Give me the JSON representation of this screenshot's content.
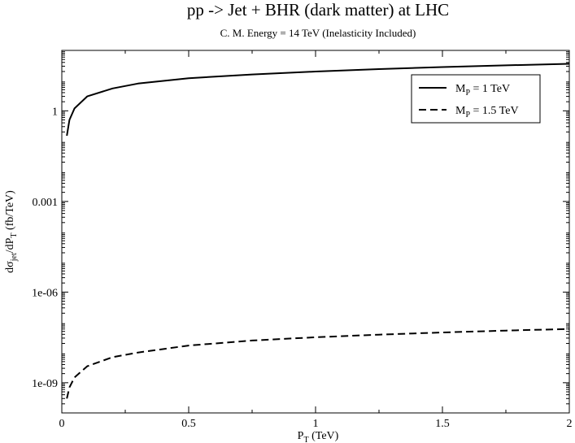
{
  "chart_data": {
    "type": "line",
    "title": "pp -> Jet + BHR (dark matter) at LHC",
    "subtitle": "C. M. Energy = 14 TeV (Inelasticity Included)",
    "xlabel": {
      "main": "P",
      "sub": "T",
      "unit": " (TeV)"
    },
    "ylabel": {
      "a": "dσ",
      "a_sub": "jet",
      "b": "/dP",
      "b_sub": "T",
      "unit": " (fb/TeV)"
    },
    "x_scale": "linear",
    "y_scale": "log",
    "xlim": [
      0,
      2
    ],
    "ylim": [
      1e-10,
      100
    ],
    "x_ticks": [
      {
        "value": 0,
        "label": "0"
      },
      {
        "value": 0.5,
        "label": "0.5"
      },
      {
        "value": 1,
        "label": "1"
      },
      {
        "value": 1.5,
        "label": "1.5"
      },
      {
        "value": 2,
        "label": "2"
      }
    ],
    "y_ticks": [
      {
        "value": 1e-09,
        "label": "1e-09"
      },
      {
        "value": 1e-06,
        "label": "1e-06"
      },
      {
        "value": 0.001,
        "label": "0.001"
      },
      {
        "value": 1,
        "label": "1"
      }
    ],
    "grid": false,
    "legend_position": "top-right",
    "series": [
      {
        "name": {
          "main": "M",
          "sub": "P",
          "rest": " = 1 TeV"
        },
        "style": "solid",
        "color": "#000000",
        "x": [
          0.02,
          0.03,
          0.05,
          0.1,
          0.2,
          0.3,
          0.5,
          0.75,
          1.0,
          1.25,
          1.5,
          1.75,
          2.0
        ],
        "y": [
          0.15,
          0.5,
          1.2,
          3.0,
          5.5,
          8.0,
          12.0,
          16.0,
          20.0,
          24.0,
          28.0,
          32.0,
          36.0
        ]
      },
      {
        "name": {
          "main": "M",
          "sub": "P",
          "rest": " = 1.5 TeV"
        },
        "style": "dashed",
        "color": "#000000",
        "x": [
          0.02,
          0.03,
          0.05,
          0.1,
          0.2,
          0.3,
          0.5,
          0.75,
          1.0,
          1.25,
          1.5,
          1.75,
          2.0
        ],
        "y": [
          3e-10,
          7e-10,
          1.5e-09,
          3.5e-09,
          7e-09,
          1e-08,
          1.7e-08,
          2.5e-08,
          3.2e-08,
          3.9e-08,
          4.6e-08,
          5.3e-08,
          6e-08
        ]
      }
    ]
  }
}
